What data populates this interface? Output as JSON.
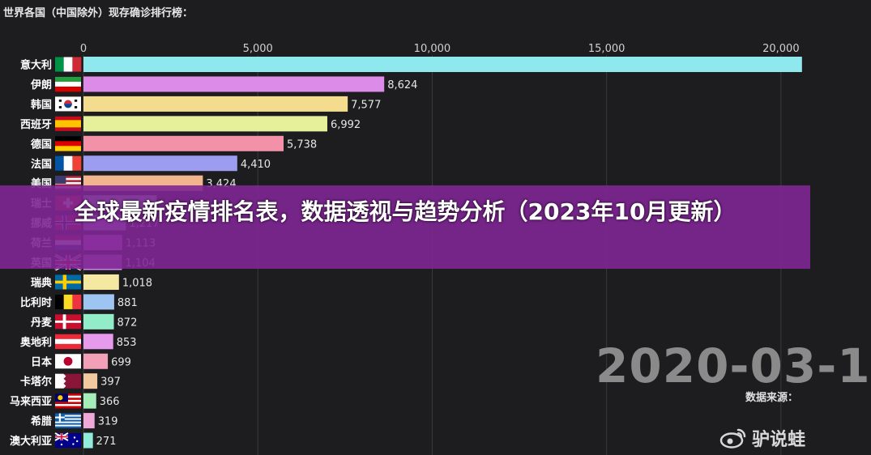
{
  "chart_data": {
    "type": "bar",
    "orientation": "horizontal",
    "title": "世界各国（中国除外）现存确诊排行榜：",
    "xlim": [
      0,
      20700
    ],
    "x_ticks": [
      {
        "value": 0,
        "label": "0"
      },
      {
        "value": 5000,
        "label": "5,000"
      },
      {
        "value": 10000,
        "label": "10,000"
      },
      {
        "value": 15000,
        "label": "15,000"
      },
      {
        "value": 20000,
        "label": "20,000"
      }
    ],
    "grid": true,
    "bars": [
      {
        "country": "意大利",
        "value": 20603,
        "value_label": "",
        "color": "#8ee8ee",
        "flag": "italy-flag"
      },
      {
        "country": "伊朗",
        "value": 8624,
        "value_label": "8,624",
        "color": "#dc8ce8",
        "flag": "iran-flag"
      },
      {
        "country": "韩国",
        "value": 7577,
        "value_label": "7,577",
        "color": "#f3dc8e",
        "flag": "korea-flag"
      },
      {
        "country": "西班牙",
        "value": 6992,
        "value_label": "6,992",
        "color": "#e6f09a",
        "flag": "spain-flag"
      },
      {
        "country": "德国",
        "value": 5738,
        "value_label": "5,738",
        "color": "#f291a8",
        "flag": "germany-flag"
      },
      {
        "country": "法国",
        "value": 4410,
        "value_label": "4,410",
        "color": "#9c9cf0",
        "flag": "france-flag"
      },
      {
        "country": "美国",
        "value": 3424,
        "value_label": "3,424",
        "color": "#f2b48c",
        "flag": "usa-flag"
      },
      {
        "country": "瑞士",
        "value": 2100,
        "value_label": "",
        "color": "#a6e8c8",
        "flag": "switzerland-flag"
      },
      {
        "country": "挪威",
        "value": 1217,
        "value_label": "1,217",
        "color": "#bfa8f0",
        "flag": "norway-flag"
      },
      {
        "country": "荷兰",
        "value": 1113,
        "value_label": "1,113",
        "color": "#e07ce8",
        "flag": "netherlands-flag"
      },
      {
        "country": "英国",
        "value": 1104,
        "value_label": "1,104",
        "color": "#c88ce8",
        "flag": "uk-flag"
      },
      {
        "country": "瑞典",
        "value": 1018,
        "value_label": "1,018",
        "color": "#f5e8a0",
        "flag": "sweden-flag"
      },
      {
        "country": "比利时",
        "value": 881,
        "value_label": "881",
        "color": "#9ec4f2",
        "flag": "belgium-flag"
      },
      {
        "country": "丹麦",
        "value": 872,
        "value_label": "872",
        "color": "#92ecc8",
        "flag": "denmark-flag"
      },
      {
        "country": "奥地利",
        "value": 853,
        "value_label": "853",
        "color": "#e69aec",
        "flag": "austria-flag"
      },
      {
        "country": "日本",
        "value": 699,
        "value_label": "699",
        "color": "#f2a0b8",
        "flag": "japan-flag"
      },
      {
        "country": "卡塔尔",
        "value": 397,
        "value_label": "397",
        "color": "#f2c8a0",
        "flag": "qatar-flag"
      },
      {
        "country": "马来西亚",
        "value": 366,
        "value_label": "366",
        "color": "#a4ecb8",
        "flag": "malaysia-flag"
      },
      {
        "country": "希腊",
        "value": 319,
        "value_label": "319",
        "color": "#f0a8d8",
        "flag": "greece-flag"
      },
      {
        "country": "澳大利亚",
        "value": 271,
        "value_label": "271",
        "color": "#92ecdc",
        "flag": "australia-flag"
      }
    ]
  },
  "overlay": {
    "date": "2020-03-1",
    "source": "数据来源：",
    "banner_title": "全球最新疫情排名表，数据透视与趋势分析（2023年10月更新）",
    "watermark": "驴说蛙",
    "watermark_icon": "weibo-icon"
  }
}
